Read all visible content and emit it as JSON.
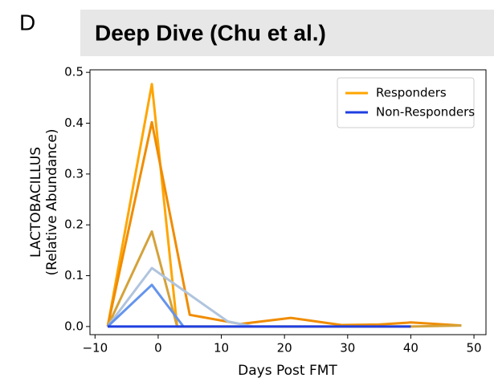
{
  "panel_label": "D",
  "header": {
    "title": "Deep Dive (Chu et al.)"
  },
  "chart_data": {
    "type": "line",
    "xlabel": "Days Post FMT",
    "ylabel": [
      "LACTOBACILLUS",
      "(Relative Abundance)"
    ],
    "xlim": [
      -10.8,
      51.9
    ],
    "ylim": [
      -0.016,
      0.505
    ],
    "xticks": [
      {
        "value": -10,
        "label": "−10"
      },
      0,
      10,
      20,
      30,
      40,
      50
    ],
    "yticks": [
      {
        "value": 0,
        "label": "0.0"
      },
      0.1,
      0.2,
      0.3,
      0.4,
      0.5
    ],
    "legend": "upper right",
    "series": [
      {
        "name": "Responders",
        "color": "#ffa500",
        "x": [
          -8,
          -1,
          3
        ],
        "values": [
          0,
          0.477,
          0
        ]
      },
      {
        "color": "#f08c00",
        "x": [
          -8,
          -1,
          5,
          13,
          21,
          29,
          35,
          40,
          48
        ],
        "values": [
          0,
          0.402,
          0.023,
          0.005,
          0.017,
          0.003,
          0.004,
          0.008,
          0.002
        ]
      },
      {
        "color": "#d4a23a",
        "x": [
          -8,
          -1,
          3,
          40,
          48
        ],
        "values": [
          0,
          0.187,
          0,
          0,
          0.002
        ]
      },
      {
        "color": "#b0c4de",
        "x": [
          -8,
          -1,
          11,
          15
        ],
        "values": [
          0,
          0.115,
          0.01,
          0
        ]
      },
      {
        "color": "#6495ed",
        "x": [
          -8,
          -1,
          4
        ],
        "values": [
          0,
          0.082,
          0
        ]
      },
      {
        "name": "Non-Responders",
        "color": "#1f3fe0",
        "x": [
          -8,
          40
        ],
        "values": [
          0,
          0
        ]
      }
    ]
  }
}
